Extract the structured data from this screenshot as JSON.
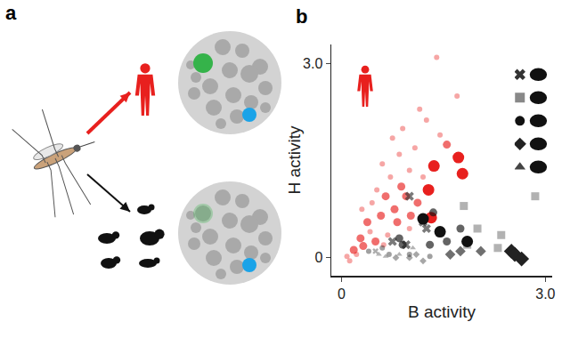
{
  "figure_labels": [
    "a",
    "b"
  ],
  "chart_data": {
    "type": "scatter",
    "xlabel": "B activity",
    "ylabel": "H activity",
    "xlim": [
      -0.15,
      3.1
    ],
    "ylim": [
      -0.28,
      3.3
    ],
    "xticks": [
      0,
      {
        "value": 3,
        "label": "3.0"
      }
    ],
    "yticks": [
      0,
      {
        "value": 3,
        "label": "3.0"
      }
    ],
    "grid": false,
    "series": [
      {
        "color": "#e8201e",
        "marker": "circle",
        "x": [
          0.08,
          0.12,
          0.18,
          0.22,
          0.28,
          0.32,
          0.38,
          0.42,
          0.45,
          0.5,
          0.52,
          0.58,
          0.6,
          0.65,
          0.68,
          0.72,
          0.75,
          0.78,
          0.82,
          0.85,
          0.88,
          0.9,
          0.95,
          1.0,
          1.02,
          1.08,
          1.12,
          1.15,
          1.2,
          1.25,
          1.28,
          1.32,
          1.36,
          1.4,
          1.45,
          1.55,
          1.7,
          1.72,
          1.78,
          1.0,
          0.62,
          0.3
        ],
        "y": [
          0.02,
          -0.05,
          0.12,
          0.05,
          0.3,
          0.18,
          0.55,
          0.4,
          0.85,
          0.25,
          1.05,
          0.65,
          1.45,
          0.95,
          0.35,
          1.25,
          1.85,
          0.75,
          0.55,
          1.6,
          1.1,
          2.0,
          0.95,
          1.35,
          0.65,
          1.7,
          0.85,
          2.3,
          1.25,
          2.13,
          1.05,
          0.62,
          1.42,
          3.1,
          1.9,
          1.75,
          2.5,
          1.55,
          1.3,
          0.45,
          0.2,
          0.75
        ],
        "sizes": [
          1,
          1,
          2,
          1,
          2,
          2,
          2,
          1,
          1,
          2,
          1,
          2,
          1,
          2,
          1,
          1,
          1,
          2,
          2,
          1,
          2,
          1,
          2,
          1,
          2,
          1,
          2,
          1,
          1,
          1,
          3,
          3,
          3,
          1,
          1,
          2,
          1,
          3,
          3,
          1,
          1,
          1
        ]
      },
      {
        "color": "#333333",
        "marker": "x",
        "x": [
          1.0,
          1.2,
          0.95,
          0.75,
          1.25,
          0.5
        ],
        "y": [
          0.95,
          0.55,
          0.2,
          0.25,
          0.45,
          0.1
        ],
        "sizes": [
          2,
          2,
          2,
          2,
          2,
          1
        ]
      },
      {
        "color": "#888888",
        "marker": "square",
        "x": [
          1.85,
          2.0,
          2.3,
          2.85,
          1.8,
          2.35
        ],
        "y": [
          0.2,
          0.45,
          0.15,
          0.95,
          0.8,
          0.35
        ],
        "sizes": [
          2,
          2,
          2,
          2,
          2,
          2
        ]
      },
      {
        "color": "#111111",
        "marker": "circle",
        "x": [
          1.2,
          1.45,
          1.55,
          1.3,
          0.9,
          0.6,
          0.7,
          0.4,
          0.85,
          1.0,
          1.3,
          1.85,
          1.75,
          1.35
        ],
        "y": [
          0.6,
          0.4,
          0.25,
          0.2,
          0.2,
          0.15,
          0.05,
          0.1,
          0.3,
          0.05,
          0.02,
          0.25,
          0.45,
          0.7
        ],
        "sizes": [
          3,
          3,
          2,
          2,
          2,
          1,
          1,
          1,
          2,
          1,
          1,
          3,
          2,
          2
        ]
      },
      {
        "color": "#222222",
        "marker": "diamond",
        "x": [
          1.0,
          1.1,
          1.2,
          1.6,
          1.75,
          2.05,
          2.5,
          2.55,
          2.65,
          0.8
        ],
        "y": [
          0.0,
          0.05,
          -0.05,
          0.05,
          0.1,
          0.1,
          0.1,
          0.05,
          -0.02,
          0.0
        ],
        "sizes": [
          1,
          1,
          1,
          2,
          2,
          2,
          3,
          3,
          3,
          1
        ]
      },
      {
        "color": "#444444",
        "marker": "triangle-up",
        "x": [
          0.85,
          1.05,
          0.65,
          0.55
        ],
        "y": [
          0.05,
          0.15,
          0.02,
          0.05
        ],
        "sizes": [
          1,
          1,
          1,
          1
        ]
      }
    ]
  }
}
